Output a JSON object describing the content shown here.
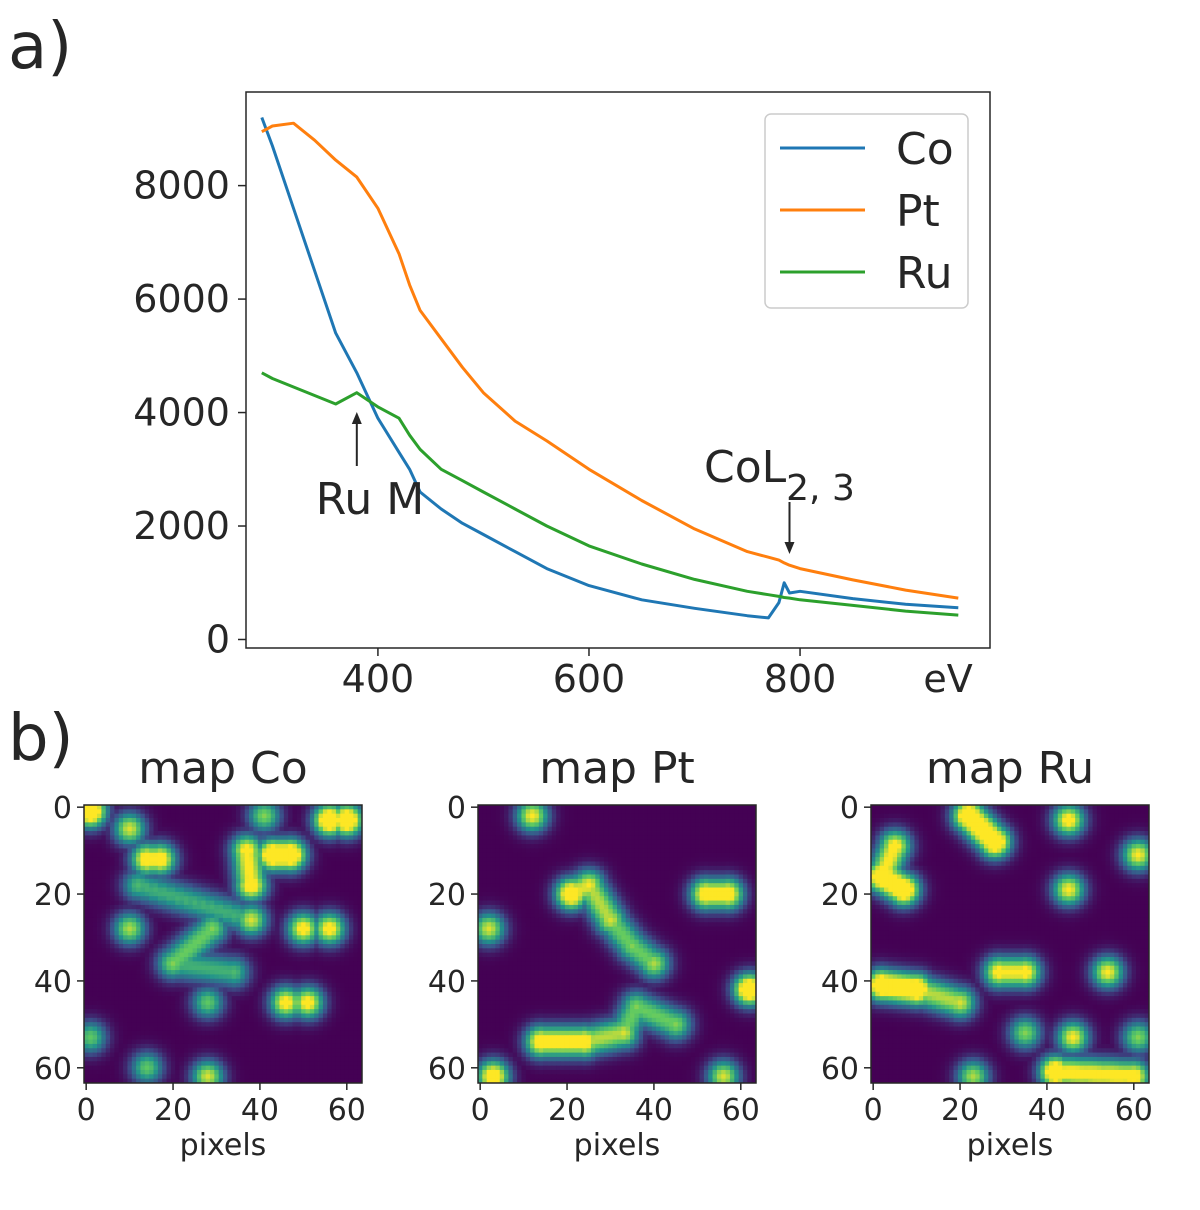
{
  "panel_labels": {
    "a": "a)",
    "b": "b)"
  },
  "colors": {
    "Co": "#1f77b4",
    "Pt": "#ff7f0e",
    "Ru": "#2ca02c"
  },
  "chart_data": [
    {
      "type": "line",
      "id": "spectrum",
      "title": "",
      "xlabel": "eV",
      "ylabel": "",
      "xlim": [
        275,
        980
      ],
      "ylim": [
        -150,
        9650
      ],
      "xticks": [
        400,
        600,
        800
      ],
      "yticks": [
        0,
        2000,
        4000,
        6000,
        8000
      ],
      "x": [
        290,
        300,
        320,
        340,
        360,
        380,
        400,
        420,
        430,
        440,
        460,
        480,
        500,
        530,
        560,
        600,
        650,
        700,
        750,
        770,
        780,
        785,
        790,
        800,
        850,
        900,
        950
      ],
      "series": [
        {
          "name": "Co",
          "values": [
            9200,
            8700,
            7600,
            6500,
            5400,
            4700,
            3900,
            3300,
            3000,
            2600,
            2300,
            2050,
            1850,
            1550,
            1250,
            950,
            700,
            550,
            420,
            380,
            650,
            1000,
            820,
            850,
            720,
            620,
            560
          ]
        },
        {
          "name": "Pt",
          "values": [
            8950,
            9050,
            9100,
            8800,
            8450,
            8150,
            7600,
            6800,
            6250,
            5800,
            5300,
            4800,
            4350,
            3850,
            3500,
            3000,
            2450,
            1950,
            1550,
            1450,
            1400,
            1350,
            1310,
            1250,
            1050,
            870,
            730
          ]
        },
        {
          "name": "Ru",
          "values": [
            4700,
            4600,
            4450,
            4300,
            4150,
            4350,
            4100,
            3900,
            3600,
            3350,
            3000,
            2800,
            2600,
            2300,
            2000,
            1650,
            1330,
            1060,
            850,
            790,
            760,
            740,
            730,
            700,
            600,
            500,
            430
          ]
        }
      ],
      "legend": {
        "position": "top-right",
        "entries": [
          "Co",
          "Pt",
          "Ru"
        ]
      },
      "annotations": [
        {
          "text": "Ru M",
          "x": 380,
          "y": 4000
        },
        {
          "text": "CoL",
          "subscript": "2, 3",
          "x": 790,
          "y": 1450
        }
      ]
    },
    {
      "type": "heatmap",
      "title": "map Co",
      "xlabel": "pixels",
      "xticks": [
        0,
        20,
        40,
        60
      ],
      "yticks": [
        0,
        20,
        40,
        60
      ],
      "grid_size": 64,
      "colormap": "viridis",
      "pattern_source": "heatmap_structure",
      "blobs": [
        {
          "x": 1,
          "y": 1,
          "v": 1.0
        },
        {
          "x": 10,
          "y": 5,
          "v": 0.7
        },
        {
          "x": 14,
          "y": 12,
          "v": 0.85
        },
        {
          "x": 17,
          "y": 12,
          "v": 0.85
        },
        {
          "x": 12,
          "y": 18,
          "v": 0.5
        },
        {
          "x": 37,
          "y": 10,
          "v": 0.8
        },
        {
          "x": 38,
          "y": 18,
          "v": 0.85
        },
        {
          "x": 38,
          "y": 26,
          "v": 0.7
        },
        {
          "x": 43,
          "y": 11,
          "v": 1.0
        },
        {
          "x": 47,
          "y": 11,
          "v": 1.0
        },
        {
          "x": 56,
          "y": 3,
          "v": 1.0
        },
        {
          "x": 60,
          "y": 3,
          "v": 1.0
        },
        {
          "x": 41,
          "y": 2,
          "v": 0.6
        },
        {
          "x": 50,
          "y": 28,
          "v": 0.8
        },
        {
          "x": 56,
          "y": 28,
          "v": 0.8
        },
        {
          "x": 10,
          "y": 28,
          "v": 0.65
        },
        {
          "x": 29,
          "y": 28,
          "v": 0.6
        },
        {
          "x": 20,
          "y": 36,
          "v": 0.6
        },
        {
          "x": 34,
          "y": 38,
          "v": 0.5
        },
        {
          "x": 28,
          "y": 45,
          "v": 0.55
        },
        {
          "x": 46,
          "y": 45,
          "v": 0.8
        },
        {
          "x": 51,
          "y": 45,
          "v": 0.8
        },
        {
          "x": 1,
          "y": 53,
          "v": 0.55
        },
        {
          "x": 14,
          "y": 60,
          "v": 0.55
        },
        {
          "x": 28,
          "y": 62,
          "v": 0.7
        }
      ],
      "links": [
        [
          8,
          9
        ],
        [
          16,
          17
        ],
        [
          17,
          18
        ],
        [
          4,
          7
        ],
        [
          5,
          6
        ]
      ]
    },
    {
      "type": "heatmap",
      "title": "map Pt",
      "xlabel": "pixels",
      "xticks": [
        0,
        20,
        40,
        60
      ],
      "yticks": [
        0,
        20,
        40,
        60
      ],
      "grid_size": 64,
      "colormap": "viridis",
      "pattern_source": "heatmap_structure",
      "blobs": [
        {
          "x": 12,
          "y": 2,
          "v": 0.75
        },
        {
          "x": 21,
          "y": 20,
          "v": 0.95
        },
        {
          "x": 25,
          "y": 18,
          "v": 0.75
        },
        {
          "x": 30,
          "y": 26,
          "v": 0.7
        },
        {
          "x": 35,
          "y": 32,
          "v": 0.6
        },
        {
          "x": 40,
          "y": 36,
          "v": 0.65
        },
        {
          "x": 2,
          "y": 28,
          "v": 0.7
        },
        {
          "x": 52,
          "y": 20,
          "v": 0.85
        },
        {
          "x": 57,
          "y": 20,
          "v": 0.85
        },
        {
          "x": 62,
          "y": 42,
          "v": 1.0
        },
        {
          "x": 45,
          "y": 50,
          "v": 0.6
        },
        {
          "x": 36,
          "y": 46,
          "v": 0.6
        },
        {
          "x": 14,
          "y": 54,
          "v": 0.85
        },
        {
          "x": 24,
          "y": 54,
          "v": 0.85
        },
        {
          "x": 33,
          "y": 52,
          "v": 0.7
        },
        {
          "x": 3,
          "y": 62,
          "v": 0.9
        },
        {
          "x": 56,
          "y": 62,
          "v": 0.7
        }
      ],
      "links": [
        [
          1,
          2
        ],
        [
          2,
          3
        ],
        [
          3,
          4
        ],
        [
          4,
          5
        ],
        [
          7,
          8
        ],
        [
          12,
          13
        ],
        [
          13,
          14
        ],
        [
          14,
          11
        ],
        [
          11,
          10
        ]
      ]
    },
    {
      "type": "heatmap",
      "title": "map Ru",
      "xlabel": "pixels",
      "xticks": [
        0,
        20,
        40,
        60
      ],
      "yticks": [
        0,
        20,
        40,
        60
      ],
      "grid_size": 64,
      "colormap": "viridis",
      "pattern_source": "heatmap_structure",
      "blobs": [
        {
          "x": 5,
          "y": 9,
          "v": 0.8
        },
        {
          "x": 2,
          "y": 16,
          "v": 1.0
        },
        {
          "x": 7,
          "y": 19,
          "v": 1.0
        },
        {
          "x": 22,
          "y": 2,
          "v": 1.0
        },
        {
          "x": 28,
          "y": 8,
          "v": 1.0
        },
        {
          "x": 45,
          "y": 3,
          "v": 0.8
        },
        {
          "x": 61,
          "y": 11,
          "v": 0.75
        },
        {
          "x": 45,
          "y": 19,
          "v": 0.75
        },
        {
          "x": 29,
          "y": 38,
          "v": 0.8
        },
        {
          "x": 35,
          "y": 38,
          "v": 0.8
        },
        {
          "x": 2,
          "y": 41,
          "v": 1.0
        },
        {
          "x": 10,
          "y": 42,
          "v": 1.0
        },
        {
          "x": 20,
          "y": 45,
          "v": 0.7
        },
        {
          "x": 54,
          "y": 38,
          "v": 0.75
        },
        {
          "x": 35,
          "y": 52,
          "v": 0.6
        },
        {
          "x": 46,
          "y": 53,
          "v": 0.75
        },
        {
          "x": 61,
          "y": 53,
          "v": 0.6
        },
        {
          "x": 42,
          "y": 61,
          "v": 1.0
        },
        {
          "x": 60,
          "y": 62,
          "v": 0.85
        },
        {
          "x": 23,
          "y": 62,
          "v": 0.65
        }
      ],
      "links": [
        [
          0,
          1
        ],
        [
          1,
          2
        ],
        [
          3,
          4
        ],
        [
          8,
          9
        ],
        [
          10,
          11
        ],
        [
          11,
          12
        ],
        [
          17,
          18
        ]
      ]
    }
  ]
}
